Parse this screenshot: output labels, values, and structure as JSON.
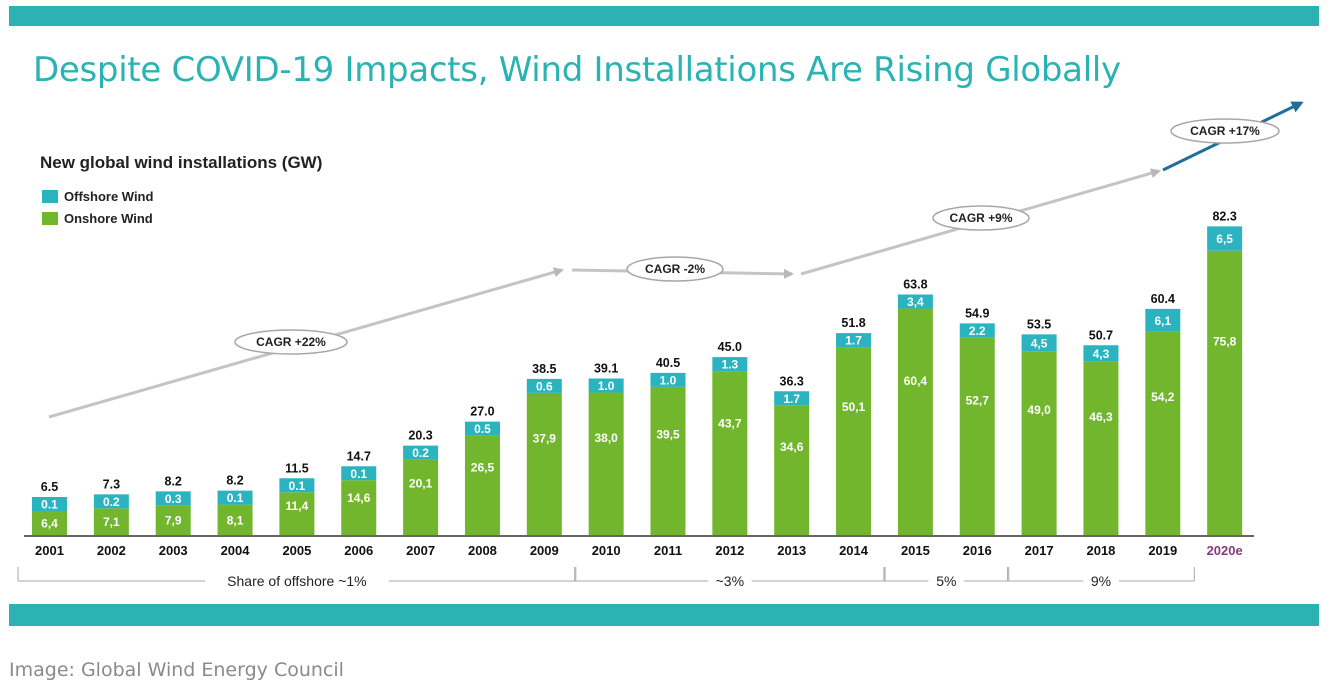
{
  "slide": {
    "title": "Despite COVID-19 Impacts, Wind Installations Are Rising Globally",
    "theme_color": "#2bb3b3"
  },
  "caption": "Image: Global Wind Energy Council",
  "chart_data": {
    "type": "bar",
    "stacked": true,
    "title": "New global wind installations (GW)",
    "categories": [
      "2001",
      "2002",
      "2003",
      "2004",
      "2005",
      "2006",
      "2007",
      "2008",
      "2009",
      "2010",
      "2011",
      "2012",
      "2013",
      "2014",
      "2015",
      "2016",
      "2017",
      "2018",
      "2019",
      "2020e"
    ],
    "series": [
      {
        "name": "Onshore Wind",
        "color": "#72b62e",
        "labels": [
          "6,4",
          "7,1",
          "7,9",
          "8,1",
          "11,4",
          "14,6",
          "20,1",
          "26,5",
          "37,9",
          "38,0",
          "39,5",
          "43,7",
          "34,6",
          "50,1",
          "60,4",
          "52,7",
          "49,0",
          "46,3",
          "54,2",
          "75,8"
        ],
        "values": [
          6.4,
          7.1,
          7.9,
          8.1,
          11.4,
          14.6,
          20.1,
          26.5,
          37.9,
          38.0,
          39.5,
          43.7,
          34.6,
          50.1,
          60.4,
          52.7,
          49.0,
          46.3,
          54.2,
          75.8
        ]
      },
      {
        "name": "Offshore Wind",
        "color": "#2bb3c0",
        "labels": [
          "0.1",
          "0.2",
          "0.3",
          "0.1",
          "0.1",
          "0.1",
          "0.2",
          "0.5",
          "0.6",
          "1.0",
          "1.0",
          "1.3",
          "1.7",
          "1.7",
          "3,4",
          "2.2",
          "4,5",
          "4,3",
          "6,1",
          "6,5"
        ],
        "values": [
          0.1,
          0.2,
          0.3,
          0.1,
          0.1,
          0.1,
          0.2,
          0.5,
          0.6,
          1.0,
          1.0,
          1.3,
          1.7,
          1.7,
          3.4,
          2.2,
          4.5,
          4.3,
          6.1,
          6.5
        ]
      }
    ],
    "totals": [
      "6.5",
      "7.3",
      "8.2",
      "8.2",
      "11.5",
      "14.7",
      "20.3",
      "27.0",
      "38.5",
      "39.1",
      "40.5",
      "45.0",
      "36.3",
      "51.8",
      "63.8",
      "54.9",
      "53.5",
      "50.7",
      "60.4",
      "82.3"
    ],
    "totals_values": [
      6.5,
      7.3,
      8.2,
      8.2,
      11.5,
      14.7,
      20.3,
      27.0,
      38.5,
      39.1,
      40.5,
      45.0,
      36.3,
      51.8,
      63.8,
      54.9,
      53.5,
      50.7,
      60.4,
      82.3
    ],
    "highlight_category": {
      "index": 19,
      "color": "#8b3a7c"
    },
    "legend": {
      "position": "top-left",
      "items": [
        "Offshore Wind",
        "Onshore Wind"
      ]
    },
    "grid": false,
    "ylim": [
      0,
      90
    ],
    "annotations": {
      "cagr": [
        "CAGR +22%",
        "CAGR -2%",
        "CAGR +9%",
        "CAGR +17%"
      ],
      "offshore_share": [
        {
          "label": "Share of offshore ~1%",
          "from": 0,
          "to": 8
        },
        {
          "label": "~3%",
          "from": 9,
          "to": 13
        },
        {
          "label": "5%",
          "from": 14,
          "to": 15
        },
        {
          "label": "9%",
          "from": 16,
          "to": 18
        }
      ]
    }
  }
}
